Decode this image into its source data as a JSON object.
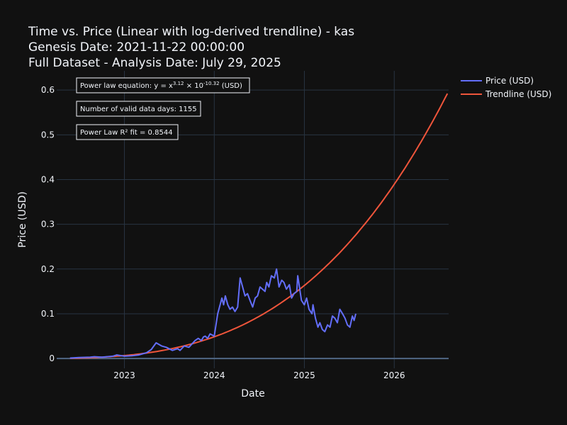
{
  "chart_data": {
    "type": "line",
    "title_lines": [
      "Time vs. Price (Linear with log-derived trendline) - kas",
      "Genesis Date: 2021-11-22 00:00:00",
      "Full Dataset - Analysis Date: July 29, 2025"
    ],
    "xlabel": "Date",
    "ylabel": "Price (USD)",
    "xlim": [
      "2022-04-01",
      "2026-08-10"
    ],
    "ylim": [
      -0.022,
      0.643
    ],
    "x_ticks": [
      "2023-01-01",
      "2024-01-01",
      "2025-01-01",
      "2026-01-01"
    ],
    "x_tick_labels": [
      "2023",
      "2024",
      "2025",
      "2026"
    ],
    "y_ticks": [
      0,
      0.1,
      0.2,
      0.3,
      0.4,
      0.5,
      0.6
    ],
    "y_tick_labels": [
      "0",
      "0.1",
      "0.2",
      "0.3",
      "0.4",
      "0.5",
      "0.6"
    ],
    "grid": true,
    "legend_position": "top-right",
    "annotations": {
      "equation": {
        "prefix": "Power law equation: y = x",
        "exponent": "3.12",
        "middle": " × 10",
        "power": "-10.32",
        "suffix": " (USD)"
      },
      "valid_days": "Number of valid data days: 1155",
      "r_squared": "Power Law R² fit = 0.8544"
    },
    "series": [
      {
        "name": "Price (USD)",
        "color": "#636efa",
        "x": [
          "2022-05-25",
          "2022-07-01",
          "2022-08-15",
          "2022-09-01",
          "2022-10-01",
          "2022-11-15",
          "2022-12-01",
          "2023-01-01",
          "2023-02-01",
          "2023-03-01",
          "2023-04-01",
          "2023-04-20",
          "2023-05-10",
          "2023-06-01",
          "2023-06-20",
          "2023-07-15",
          "2023-08-05",
          "2023-08-15",
          "2023-09-01",
          "2023-09-20",
          "2023-10-15",
          "2023-10-28",
          "2023-11-10",
          "2023-11-18",
          "2023-11-25",
          "2023-12-05",
          "2023-12-15",
          "2024-01-01",
          "2024-01-15",
          "2024-02-01",
          "2024-02-08",
          "2024-02-15",
          "2024-02-25",
          "2024-03-05",
          "2024-03-15",
          "2024-03-25",
          "2024-04-05",
          "2024-04-15",
          "2024-04-25",
          "2024-05-05",
          "2024-05-15",
          "2024-05-25",
          "2024-06-05",
          "2024-06-15",
          "2024-06-25",
          "2024-07-05",
          "2024-07-15",
          "2024-07-25",
          "2024-08-01",
          "2024-08-10",
          "2024-08-20",
          "2024-09-01",
          "2024-09-10",
          "2024-09-20",
          "2024-10-01",
          "2024-10-10",
          "2024-10-20",
          "2024-11-01",
          "2024-11-10",
          "2024-11-20",
          "2024-12-01",
          "2024-12-05",
          "2024-12-12",
          "2024-12-20",
          "2025-01-01",
          "2025-01-10",
          "2025-01-20",
          "2025-02-01",
          "2025-02-05",
          "2025-02-15",
          "2025-02-25",
          "2025-03-05",
          "2025-03-15",
          "2025-03-25",
          "2025-04-05",
          "2025-04-15",
          "2025-04-25",
          "2025-05-05",
          "2025-05-15",
          "2025-05-25",
          "2025-06-05",
          "2025-06-15",
          "2025-06-25",
          "2025-07-05",
          "2025-07-15",
          "2025-07-22",
          "2025-07-29"
        ],
        "y": [
          0.001,
          0.002,
          0.003,
          0.004,
          0.003,
          0.005,
          0.008,
          0.005,
          0.006,
          0.008,
          0.013,
          0.02,
          0.035,
          0.028,
          0.025,
          0.018,
          0.022,
          0.018,
          0.028,
          0.025,
          0.04,
          0.045,
          0.04,
          0.048,
          0.05,
          0.045,
          0.055,
          0.05,
          0.1,
          0.135,
          0.12,
          0.14,
          0.12,
          0.11,
          0.115,
          0.105,
          0.115,
          0.18,
          0.16,
          0.14,
          0.145,
          0.13,
          0.115,
          0.135,
          0.14,
          0.16,
          0.155,
          0.15,
          0.17,
          0.16,
          0.185,
          0.18,
          0.2,
          0.16,
          0.175,
          0.17,
          0.155,
          0.165,
          0.135,
          0.145,
          0.15,
          0.185,
          0.16,
          0.13,
          0.12,
          0.135,
          0.11,
          0.1,
          0.12,
          0.09,
          0.07,
          0.08,
          0.065,
          0.06,
          0.075,
          0.07,
          0.095,
          0.09,
          0.08,
          0.11,
          0.1,
          0.09,
          0.075,
          0.07,
          0.095,
          0.085,
          0.1
        ]
      },
      {
        "name": "Trendline (USD)",
        "color": "#ef553b",
        "genesis": "2021-11-22",
        "exponent": 3.12,
        "log10_coefficient": -10.32,
        "x_start": "2022-05-25",
        "x_end": "2026-08-05"
      }
    ]
  }
}
